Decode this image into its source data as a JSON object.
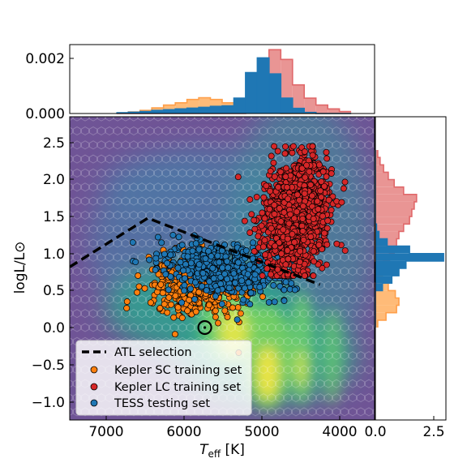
{
  "chart_data": [
    {
      "panel": "main",
      "type": "scatter",
      "xlabel_main": "T",
      "xlabel_sub": "eff",
      "xlabel_unit": " [K]",
      "ylabel": "logL/L⊙",
      "xlim": [
        7500,
        3600
      ],
      "ylim": [
        -1.25,
        2.85
      ],
      "x_ticks": [
        "7000",
        "6000",
        "5000",
        "4000"
      ],
      "y_ticks": [
        "2.5",
        "2.0",
        "1.5",
        "1.0",
        "0.5",
        "0.0",
        "−0.5",
        "−1.0"
      ],
      "background": "hexbin density (viridis) of the underlying stellar population",
      "atl_selection": {
        "x": [
          7500,
          6500,
          4300
        ],
        "y": [
          0.82,
          1.48,
          0.58
        ]
      },
      "sun_marker": {
        "x": 5772,
        "y": 0.0
      },
      "legend": {
        "placement": "lower-left",
        "entries": [
          "ATL selection",
          "Kepler SC training set",
          "Kepler LC training set",
          "TESS testing set"
        ]
      },
      "series": [
        {
          "name": "Kepler SC training set",
          "color": "#ff7f0e",
          "region": {
            "teff": [
              6600,
              5000
            ],
            "logL": [
              0.1,
              1.2
            ]
          }
        },
        {
          "name": "Kepler LC training set",
          "color": "#d62728",
          "region": {
            "teff": [
              5200,
              4000
            ],
            "logL": [
              0.7,
              2.4
            ]
          }
        },
        {
          "name": "TESS testing set",
          "color": "#1f77b4",
          "region": {
            "teff": [
              6400,
              4700
            ],
            "logL": [
              0.5,
              1.25
            ]
          }
        }
      ]
    },
    {
      "panel": "top-histogram",
      "type": "bar",
      "y_ticks": [
        "0.002",
        "0.000"
      ],
      "xlim": [
        7500,
        3600
      ],
      "ylim": [
        0,
        0.0027
      ],
      "bin_edges": [
        6900,
        6750,
        6600,
        6450,
        6300,
        6150,
        6000,
        5850,
        5700,
        5550,
        5400,
        5250,
        5100,
        4950,
        4800,
        4650,
        4500,
        4350,
        4200,
        4050,
        3900
      ],
      "series": [
        {
          "name": "Kepler SC training set",
          "color": "#ffbb78",
          "values": [
            2e-05,
            6e-05,
            0.00012,
            0.00022,
            0.00033,
            0.00042,
            0.00055,
            0.00062,
            0.00055,
            0.00042,
            0.0003,
            0.00016,
            6e-05,
            2e-05,
            0,
            0,
            0,
            0,
            0,
            0
          ]
        },
        {
          "name": "Kepler LC training set",
          "color": "#e99594",
          "values": [
            0,
            0,
            0,
            0,
            0,
            0,
            0,
            0,
            0,
            0,
            0,
            8e-05,
            0.00052,
            0.0025,
            0.00212,
            0.00112,
            0.0006,
            0.00033,
            0.00018,
            8e-05
          ]
        },
        {
          "name": "TESS testing set",
          "color": "#1f77b4",
          "values": [
            3e-05,
            5e-05,
            8e-05,
            0.00012,
            0.00015,
            0.00018,
            0.00021,
            0.00024,
            0.00028,
            0.0003,
            0.0006,
            0.0016,
            0.00218,
            0.00155,
            0.0006,
            0.0002,
            4e-05,
            0,
            0,
            0
          ]
        }
      ]
    },
    {
      "panel": "right-histogram",
      "type": "bar",
      "orientation": "horizontal",
      "x_ticks": [
        "0.0",
        "2.5"
      ],
      "xlim": [
        0,
        3.0
      ],
      "ylim": [
        -1.25,
        2.85
      ],
      "bin_edges": [
        0.0,
        0.1,
        0.2,
        0.3,
        0.4,
        0.5,
        0.6,
        0.7,
        0.8,
        0.9,
        1.0,
        1.1,
        1.2,
        1.3,
        1.4,
        1.5,
        1.6,
        1.7,
        1.8,
        1.9,
        2.0,
        2.1,
        2.2,
        2.3,
        2.4
      ],
      "series": [
        {
          "name": "Kepler SC training set",
          "color": "#ffbb78",
          "values": [
            0.1,
            0.45,
            0.9,
            1.0,
            0.85,
            0.55,
            0.3,
            0.15,
            0.05,
            0,
            0,
            0,
            0,
            0,
            0,
            0,
            0,
            0,
            0,
            0,
            0,
            0,
            0,
            0
          ]
        },
        {
          "name": "Kepler LC training set",
          "color": "#e99594",
          "values": [
            0,
            0,
            0,
            0,
            0,
            0,
            0.05,
            0.15,
            0.35,
            0.6,
            0.8,
            0.9,
            1.0,
            1.2,
            1.45,
            1.55,
            1.65,
            1.75,
            1.2,
            0.8,
            0.55,
            0.35,
            0.2,
            0.1
          ]
        },
        {
          "name": "TESS testing set",
          "color": "#1f77b4",
          "values": [
            0,
            0,
            0,
            0,
            0,
            0.3,
            0.7,
            1.0,
            1.3,
            2.9,
            1.45,
            0.5,
            0.15,
            0.05,
            0,
            0,
            0,
            0,
            0,
            0,
            0,
            0,
            0,
            0
          ]
        }
      ]
    }
  ]
}
